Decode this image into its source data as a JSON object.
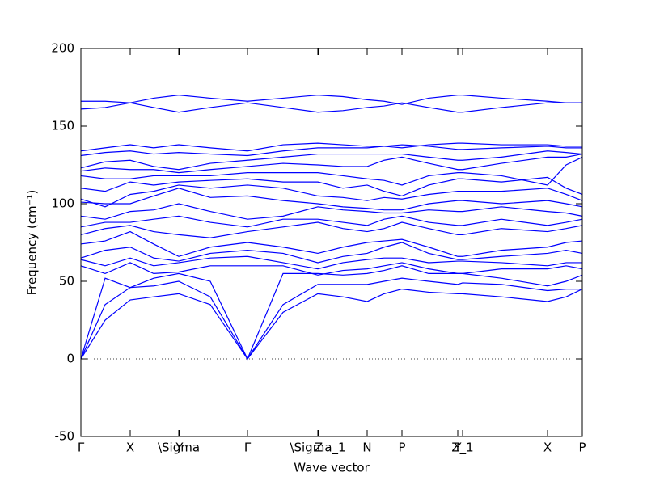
{
  "chart_data": {
    "type": "line",
    "xlabel": "Wave vector",
    "ylabel": "Frequency (cm⁻¹)",
    "color": "#0000ff",
    "zero_line": true,
    "xlim": [
      0,
      6.2
    ],
    "ylim": [
      -50,
      200
    ],
    "yticks": [
      -50,
      0,
      50,
      100,
      150,
      200
    ],
    "xticks": [
      {
        "value": 0,
        "label": "Γ"
      },
      {
        "value": 0.61,
        "label": "X"
      },
      {
        "value": 1.21,
        "label": "\\Sigma"
      },
      {
        "value": 1.22,
        "label": "Y"
      },
      {
        "value": 2.06,
        "label": "Γ"
      },
      {
        "value": 2.93,
        "label": "\\Sigma_1"
      },
      {
        "value": 2.94,
        "label": "Z"
      },
      {
        "value": 3.54,
        "label": "N"
      },
      {
        "value": 3.97,
        "label": "P"
      },
      {
        "value": 4.66,
        "label": "Y"
      },
      {
        "value": 4.72,
        "label": "Z_1"
      },
      {
        "value": 5.77,
        "label": "X"
      },
      {
        "value": 6.2,
        "label": "P"
      }
    ],
    "x": [
      0,
      0.3,
      0.61,
      0.9,
      1.21,
      1.6,
      2.06,
      2.5,
      2.93,
      3.24,
      3.54,
      3.75,
      3.97,
      4.3,
      4.66,
      4.72,
      5.2,
      5.77,
      6.0,
      6.2
    ],
    "series": [
      {
        "values": [
          0,
          25,
          38,
          40,
          42,
          35,
          0,
          30,
          42,
          40,
          37,
          42,
          45,
          43,
          42,
          42,
          40,
          37,
          40,
          45
        ]
      },
      {
        "values": [
          0,
          35,
          46,
          47,
          50,
          40,
          0,
          35,
          48,
          48,
          48,
          50,
          52,
          50,
          48,
          49,
          48,
          44,
          45,
          45
        ]
      },
      {
        "values": [
          0,
          52,
          46,
          52,
          55,
          50,
          0,
          55,
          55,
          54,
          55,
          57,
          60,
          55,
          55,
          55,
          52,
          47,
          50,
          54
        ]
      },
      {
        "values": [
          60,
          55,
          62,
          55,
          56,
          60,
          60,
          60,
          54,
          57,
          58,
          60,
          62,
          58,
          55,
          55,
          58,
          58,
          60,
          58
        ]
      },
      {
        "values": [
          64,
          60,
          65,
          60,
          62,
          65,
          66,
          62,
          58,
          62,
          64,
          65,
          65,
          62,
          63,
          63,
          62,
          60,
          62,
          62
        ]
      },
      {
        "values": [
          65,
          70,
          72,
          65,
          63,
          68,
          70,
          68,
          62,
          66,
          68,
          72,
          75,
          68,
          64,
          64,
          66,
          68,
          70,
          68
        ]
      },
      {
        "values": [
          74,
          76,
          82,
          74,
          66,
          72,
          75,
          72,
          68,
          72,
          75,
          76,
          77,
          72,
          66,
          66,
          70,
          72,
          75,
          76
        ]
      },
      {
        "values": [
          80,
          84,
          86,
          82,
          80,
          78,
          82,
          85,
          88,
          84,
          82,
          84,
          88,
          84,
          80,
          80,
          84,
          82,
          84,
          86
        ]
      },
      {
        "values": [
          85,
          88,
          88,
          90,
          92,
          88,
          85,
          90,
          90,
          88,
          86,
          90,
          92,
          88,
          86,
          86,
          90,
          86,
          88,
          90
        ]
      },
      {
        "values": [
          92,
          90,
          95,
          96,
          100,
          95,
          90,
          92,
          98,
          96,
          95,
          94,
          94,
          96,
          95,
          95,
          98,
          95,
          94,
          92
        ]
      },
      {
        "values": [
          101,
          100,
          100,
          105,
          110,
          104,
          105,
          102,
          100,
          98,
          97,
          96,
          96,
          100,
          102,
          102,
          100,
          102,
          100,
          98
        ]
      },
      {
        "values": [
          103,
          98,
          106,
          108,
          112,
          110,
          112,
          110,
          105,
          104,
          102,
          104,
          103,
          106,
          108,
          108,
          108,
          110,
          106,
          102
        ]
      },
      {
        "values": [
          110,
          108,
          114,
          112,
          114,
          115,
          116,
          114,
          114,
          110,
          112,
          108,
          105,
          112,
          116,
          116,
          114,
          117,
          110,
          106
        ]
      },
      {
        "values": [
          118,
          116,
          116,
          118,
          118,
          118,
          120,
          120,
          120,
          118,
          116,
          115,
          112,
          118,
          120,
          120,
          118,
          112,
          125,
          130
        ]
      },
      {
        "values": [
          121,
          123,
          122,
          122,
          120,
          122,
          124,
          126,
          125,
          124,
          124,
          128,
          130,
          126,
          122,
          122,
          126,
          130,
          130,
          132
        ]
      },
      {
        "values": [
          123,
          127,
          128,
          124,
          122,
          126,
          128,
          130,
          132,
          132,
          132,
          132,
          132,
          130,
          128,
          128,
          130,
          134,
          133,
          132
        ]
      },
      {
        "values": [
          131,
          133,
          134,
          132,
          133,
          132,
          131,
          134,
          136,
          136,
          136,
          137,
          138,
          137,
          135,
          135,
          136,
          137,
          136,
          136
        ]
      },
      {
        "values": [
          134,
          136,
          138,
          136,
          138,
          136,
          134,
          138,
          139,
          138,
          137,
          137,
          136,
          138,
          139,
          139,
          138,
          138,
          137,
          137
        ]
      },
      {
        "values": [
          161,
          162,
          165,
          162,
          159,
          162,
          165,
          162,
          159,
          160,
          162,
          163,
          165,
          162,
          159,
          159,
          162,
          165,
          165,
          165
        ]
      },
      {
        "values": [
          166,
          166,
          165,
          168,
          170,
          168,
          166,
          168,
          170,
          169,
          167,
          166,
          164,
          168,
          170,
          170,
          168,
          166,
          165,
          165
        ]
      }
    ]
  }
}
